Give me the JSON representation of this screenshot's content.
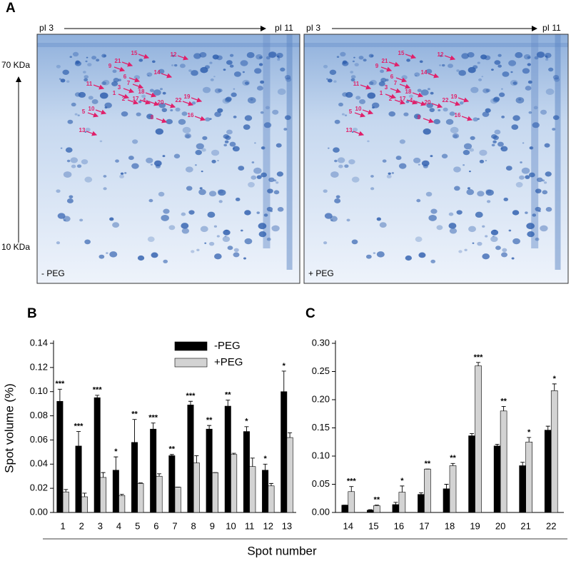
{
  "panel_a": {
    "label": "A",
    "mw_top": "70 KDa",
    "mw_bottom": "10 KDa",
    "gels": [
      {
        "condition": "- PEG",
        "pi_left": "pI 3",
        "pi_right": "pI 11"
      },
      {
        "condition": "+ PEG",
        "pi_left": "pI 3",
        "pi_right": "pI 11"
      }
    ],
    "spot_labels": [
      "15",
      "12",
      "21",
      "9",
      "14",
      "6",
      "11",
      "7",
      "3",
      "18",
      "19",
      "1",
      "2",
      "17",
      "4",
      "20",
      "22",
      "5",
      "10",
      "8",
      "16",
      "13"
    ]
  },
  "chart_data": [
    {
      "type": "bar",
      "panel": "B",
      "ylabel": "Spot volume (%)",
      "xlabel": "Spot number",
      "categories": [
        "1",
        "2",
        "3",
        "4",
        "5",
        "6",
        "7",
        "8",
        "9",
        "10",
        "11",
        "12",
        "13"
      ],
      "series": [
        {
          "name": "-PEG",
          "color": "#000000",
          "values": [
            0.092,
            0.055,
            0.095,
            0.035,
            0.058,
            0.069,
            0.047,
            0.089,
            0.069,
            0.088,
            0.067,
            0.035,
            0.1
          ],
          "errors": [
            0.01,
            0.012,
            0.002,
            0.011,
            0.019,
            0.005,
            0.001,
            0.003,
            0.003,
            0.005,
            0.004,
            0.005,
            0.017
          ]
        },
        {
          "name": "+PEG",
          "color": "#d3d3d3",
          "values": [
            0.017,
            0.013,
            0.029,
            0.014,
            0.024,
            0.03,
            0.021,
            0.041,
            0.033,
            0.048,
            0.038,
            0.022,
            0.062
          ],
          "errors": [
            0.002,
            0.003,
            0.004,
            0.001,
            0.0005,
            0.002,
            0.0,
            0.006,
            0.0,
            0.001,
            0.007,
            0.002,
            0.004
          ]
        }
      ],
      "significance": [
        "***",
        "***",
        "***",
        "*",
        "**",
        "***",
        "**",
        "***",
        "**",
        "**",
        "*",
        "*",
        "*"
      ],
      "ylim": [
        0,
        0.14
      ],
      "yticks": [
        {
          "value": 0,
          "label": "0.00"
        },
        {
          "value": 0.02,
          "label": "0.02"
        },
        {
          "value": 0.04,
          "label": "0.04"
        },
        {
          "value": 0.06,
          "label": "0.06"
        },
        {
          "value": 0.08,
          "label": "0.08"
        },
        {
          "value": 0.1,
          "label": "0.10"
        },
        {
          "value": 0.12,
          "label": "0.12"
        },
        {
          "value": 0.14,
          "label": "0.14"
        }
      ],
      "legend": "top"
    },
    {
      "type": "bar",
      "panel": "C",
      "categories": [
        "14",
        "15",
        "16",
        "17",
        "18",
        "19",
        "20",
        "21",
        "22"
      ],
      "series": [
        {
          "name": "-PEG",
          "color": "#000000",
          "values": [
            0.013,
            0.004,
            0.014,
            0.032,
            0.042,
            0.136,
            0.118,
            0.083,
            0.146
          ],
          "errors": [
            0.0,
            0.001,
            0.004,
            0.003,
            0.008,
            0.004,
            0.003,
            0.006,
            0.007
          ]
        },
        {
          "name": "+PEG",
          "color": "#d3d3d3",
          "values": [
            0.037,
            0.012,
            0.036,
            0.077,
            0.083,
            0.26,
            0.18,
            0.125,
            0.216
          ],
          "errors": [
            0.009,
            0.001,
            0.011,
            0.0,
            0.004,
            0.006,
            0.008,
            0.008,
            0.012
          ]
        }
      ],
      "significance": [
        "***",
        "**",
        "*",
        "**",
        "**",
        "***",
        "**",
        "*",
        "*"
      ],
      "ylim": [
        0,
        0.3
      ],
      "yticks": [
        {
          "value": 0,
          "label": "0.00"
        },
        {
          "value": 0.05,
          "label": "0.05"
        },
        {
          "value": 0.1,
          "label": "0.10"
        },
        {
          "value": 0.15,
          "label": "0.15"
        },
        {
          "value": 0.2,
          "label": "0.20"
        },
        {
          "value": 0.25,
          "label": "0.25"
        },
        {
          "value": 0.3,
          "label": "0.30"
        }
      ]
    }
  ]
}
